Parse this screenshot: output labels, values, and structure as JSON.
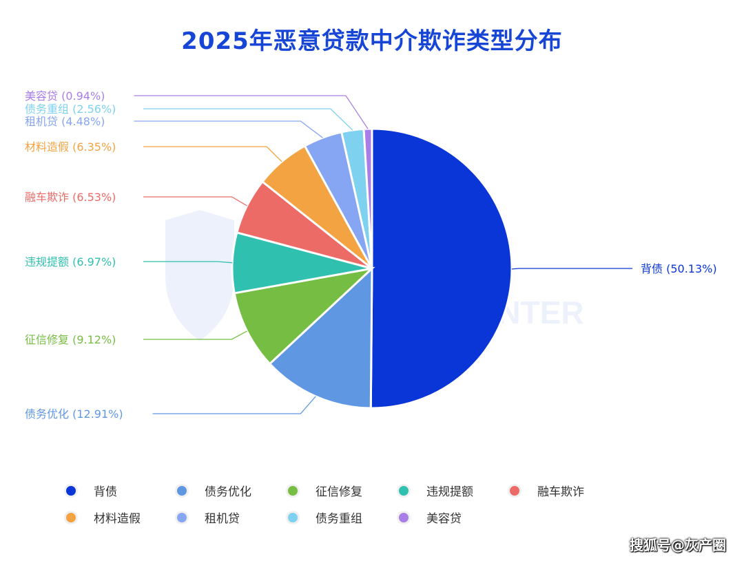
{
  "title": "2025年恶意贷款中介欺诈类型分布",
  "credit": "搜狐号@灰产圈",
  "watermark_text": "THREAT HUNTER",
  "chart_data": {
    "type": "pie",
    "title": "2025年恶意贷款中介欺诈类型分布",
    "unit": "%",
    "slices": [
      {
        "label": "背债",
        "value": 50.13,
        "color": "#0a36d8",
        "label_text": "背债 (50.13%)"
      },
      {
        "label": "债务优化",
        "value": 12.91,
        "color": "#5f97e3",
        "label_text": "债务优化 (12.91%)"
      },
      {
        "label": "征信修复",
        "value": 9.12,
        "color": "#76bd43",
        "label_text": "征信修复 (9.12%)"
      },
      {
        "label": "违规提额",
        "value": 6.97,
        "color": "#2fc0b0",
        "label_text": "违规提额 (6.97%)"
      },
      {
        "label": "融车欺诈",
        "value": 6.53,
        "color": "#ec6b66",
        "label_text": "融车欺诈 (6.53%)"
      },
      {
        "label": "材料造假",
        "value": 6.35,
        "color": "#f4a342",
        "label_text": "材料造假 (6.35%)"
      },
      {
        "label": "租机贷",
        "value": 4.48,
        "color": "#86a5f2",
        "label_text": "租机贷 (4.48%)"
      },
      {
        "label": "债务重组",
        "value": 2.56,
        "color": "#7fd1f0",
        "label_text": "债务重组 (2.56%)"
      },
      {
        "label": "美容贷",
        "value": 0.94,
        "color": "#a97de6",
        "label_text": "美容贷 (0.94%)"
      }
    ],
    "legend_position": "bottom"
  },
  "legend": [
    {
      "label": "背债",
      "color": "#0a36d8"
    },
    {
      "label": "债务优化",
      "color": "#5f97e3"
    },
    {
      "label": "征信修复",
      "color": "#76bd43"
    },
    {
      "label": "违规提额",
      "color": "#2fc0b0"
    },
    {
      "label": "融车欺诈",
      "color": "#ec6b66"
    },
    {
      "label": "材料造假",
      "color": "#f4a342"
    },
    {
      "label": "租机贷",
      "color": "#86a5f2"
    },
    {
      "label": "债务重组",
      "color": "#7fd1f0"
    },
    {
      "label": "美容贷",
      "color": "#a97de6"
    }
  ]
}
